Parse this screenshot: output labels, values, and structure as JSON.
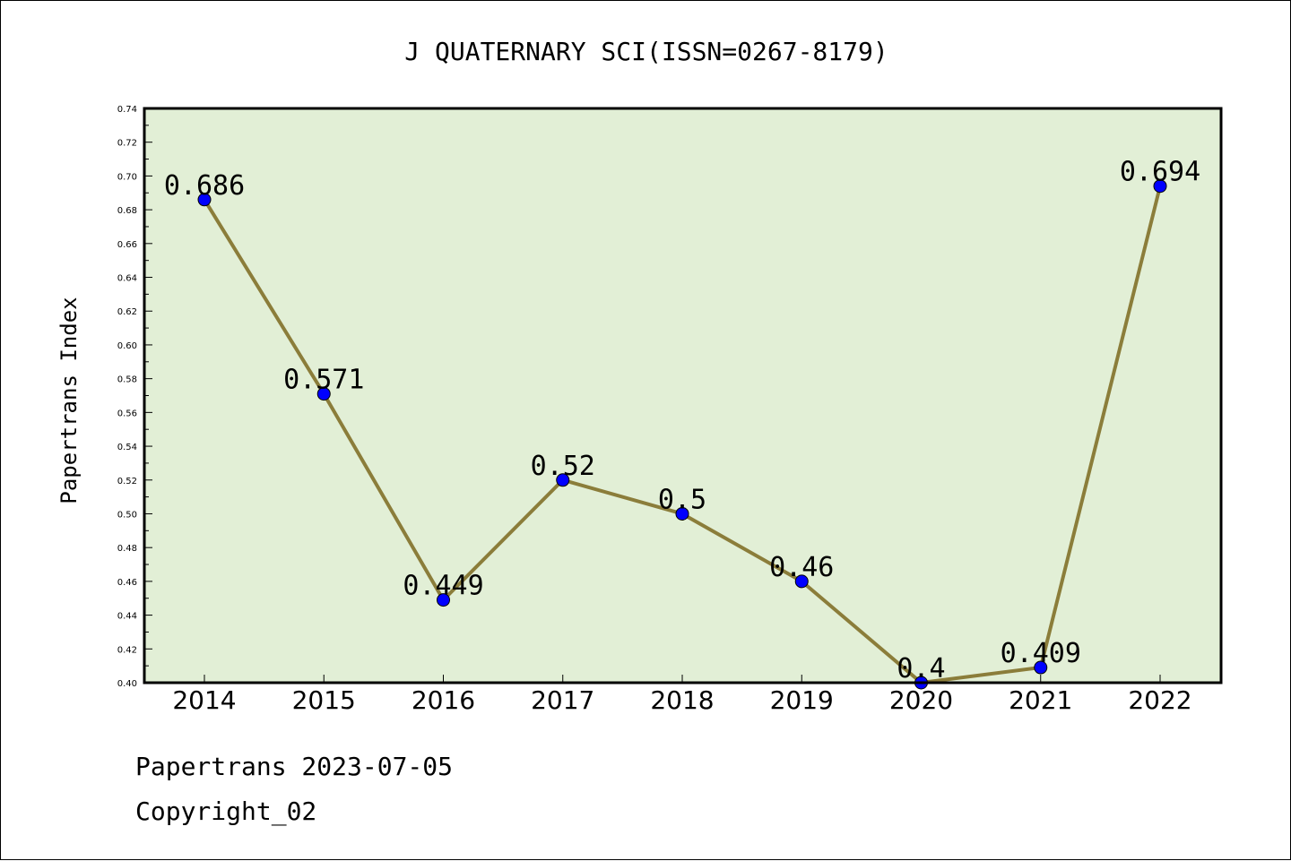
{
  "chart_data": {
    "type": "line",
    "title": "J QUATERNARY SCI(ISSN=0267-8179)",
    "ylabel": "Papertrans Index",
    "xlabel": "",
    "categories": [
      "2014",
      "2015",
      "2016",
      "2017",
      "2018",
      "2019",
      "2020",
      "2021",
      "2022"
    ],
    "series": [
      {
        "values": [
          0.686,
          0.571,
          0.449,
          0.52,
          0.5,
          0.46,
          0.4,
          0.409,
          0.694
        ],
        "data_labels": [
          "0.686",
          "0.571",
          "0.449",
          "0.52",
          "0.5",
          "0.46",
          "0.4",
          "0.409",
          "0.694"
        ],
        "line_color": "#8b7d3a",
        "marker_color": "#0000ff"
      }
    ],
    "ylim": [
      0.4,
      0.74
    ],
    "yticks": [
      "0.40",
      "0.42",
      "0.44",
      "0.46",
      "0.48",
      "0.50",
      "0.52",
      "0.54",
      "0.56",
      "0.58",
      "0.60",
      "0.62",
      "0.64",
      "0.66",
      "0.68",
      "0.70",
      "0.72",
      "0.74"
    ],
    "grid": false,
    "plot_background": "#e2efd6"
  },
  "footer": {
    "date_line": "Papertrans 2023-07-05",
    "copyright_line": "Copyright_02"
  }
}
